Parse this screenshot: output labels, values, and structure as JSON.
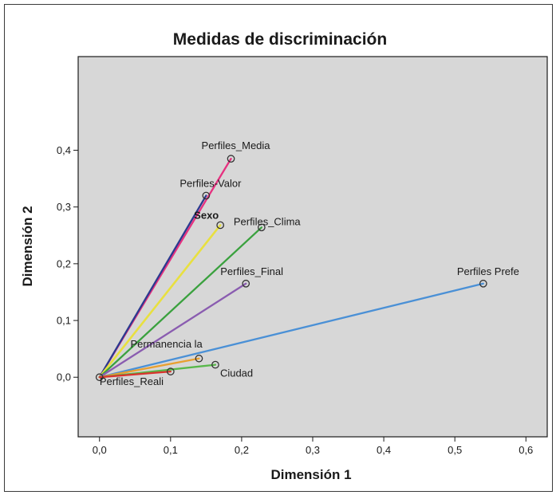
{
  "chart_data": {
    "type": "scatter",
    "title": "Medidas de discriminación",
    "xlabel": "Dimensión 1",
    "ylabel": "Dimensión 2",
    "xlim": [
      -0.03,
      0.63
    ],
    "ylim": [
      -0.105,
      0.565
    ],
    "xticks": [
      "0,0",
      "0,1",
      "0,2",
      "0,3",
      "0,4",
      "0,5",
      "0,6"
    ],
    "xtick_values": [
      0,
      0.1,
      0.2,
      0.3,
      0.4,
      0.5,
      0.6
    ],
    "yticks": [
      "0,0",
      "0,1",
      "0,2",
      "0,3",
      "0,4"
    ],
    "ytick_values": [
      0,
      0.1,
      0.2,
      0.3,
      0.4
    ],
    "grid": false,
    "origin": [
      0,
      0
    ],
    "points": [
      {
        "label": "Perfiles_Media",
        "x": 0.185,
        "y": 0.385,
        "color": "#e6307f",
        "bold": false
      },
      {
        "label": "Perfiles-Valor",
        "x": 0.15,
        "y": 0.32,
        "color": "#2b3a8f",
        "bold": false
      },
      {
        "label": "Sexo",
        "x": 0.17,
        "y": 0.268,
        "color": "#e8e040",
        "bold": true
      },
      {
        "label": "Perfiles_Clima",
        "x": 0.228,
        "y": 0.264,
        "color": "#3aa13e",
        "bold": false
      },
      {
        "label": "Perfiles_Final",
        "x": 0.206,
        "y": 0.165,
        "color": "#8a5cb0",
        "bold": false
      },
      {
        "label": "Perfiles Prefe",
        "x": 0.54,
        "y": 0.165,
        "color": "#4a90d6",
        "bold": false
      },
      {
        "label": "Permanencia la",
        "x": 0.14,
        "y": 0.033,
        "color": "#e8a030",
        "bold": false
      },
      {
        "label": "Ciudad",
        "x": 0.163,
        "y": 0.022,
        "color": "#58b84a",
        "bold": false
      },
      {
        "label": "Perfiles_Reali",
        "x": 0.1,
        "y": 0.01,
        "color": "#d8342e",
        "bold": false
      }
    ]
  }
}
